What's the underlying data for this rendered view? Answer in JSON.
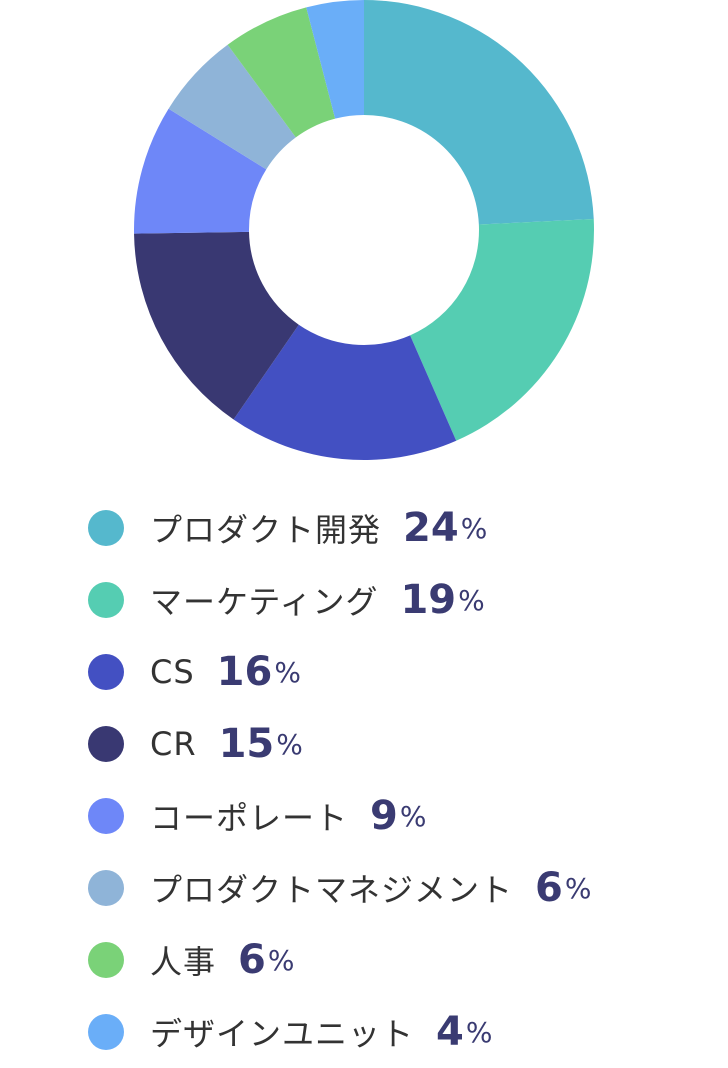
{
  "chart_data": {
    "type": "pie",
    "donut": true,
    "categories": [
      "プロダクト開発",
      "マーケティング",
      "CS",
      "CR",
      "コーポレート",
      "プロダクトマネジメント",
      "人事",
      "デザインユニット"
    ],
    "values": [
      24,
      19,
      16,
      15,
      9,
      6,
      6,
      4
    ],
    "unit": "%",
    "colors": [
      "#55b8cd",
      "#55cdb2",
      "#4350c2",
      "#393872",
      "#6e87f8",
      "#8fb4d8",
      "#7ad278",
      "#6aaef8"
    ],
    "legend_placement": "bottom"
  }
}
